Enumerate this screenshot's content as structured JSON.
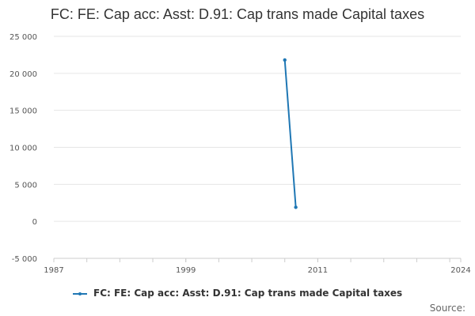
{
  "colors": {
    "series": "#1f77b4",
    "grid": "#e6e6e6",
    "axis": "#cccccc"
  },
  "source_label": "Source:",
  "chart_data": {
    "type": "line",
    "title": "FC: FE: Cap acc: Asst: D.91: Cap trans made Capital taxes",
    "xlabel": "",
    "ylabel": "",
    "xlim": [
      1987,
      2024
    ],
    "ylim": [
      -5000,
      25000
    ],
    "x_ticks": [
      1987,
      1999,
      2011,
      2024
    ],
    "y_ticks": [
      -5000,
      0,
      5000,
      10000,
      15000,
      20000,
      25000
    ],
    "y_tick_labels": [
      "-5 000",
      "0",
      "5 000",
      "10 000",
      "15 000",
      "20 000",
      "25 000"
    ],
    "grid": true,
    "legend_position": "bottom",
    "series": [
      {
        "name": "FC: FE: Cap acc: Asst: D.91: Cap trans made Capital taxes",
        "x": [
          2008,
          2009
        ],
        "y": [
          21800,
          1900
        ]
      }
    ]
  }
}
